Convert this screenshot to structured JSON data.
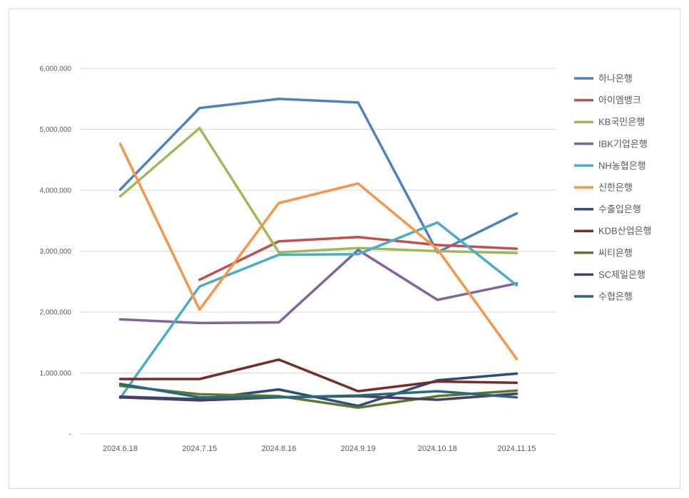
{
  "chart_data": {
    "type": "line",
    "title": "",
    "xlabel": "",
    "ylabel": "",
    "categories": [
      "2024.6.18",
      "2024.7.15",
      "2024.8.16",
      "2024.9.19",
      "2024.10.18",
      "2024.11.15"
    ],
    "ylim": [
      0,
      6000000
    ],
    "y_ticks": [
      0,
      1000000,
      2000000,
      3000000,
      4000000,
      5000000,
      6000000
    ],
    "y_tick_labels": [
      "-",
      "1,000,000",
      "2,000,000",
      "3,000,000",
      "4,000,000",
      "5,000,000",
      "6,000,000"
    ],
    "grid": true,
    "legend_position": "right",
    "series": [
      {
        "name": "하나은행",
        "color": "#4f81bd",
        "values": [
          4010000,
          5350000,
          5500000,
          5440000,
          2980000,
          3620000
        ]
      },
      {
        "name": "아이엠뱅크",
        "color": "#c0504d",
        "values": [
          null,
          2530000,
          3160000,
          3230000,
          3100000,
          3040000
        ]
      },
      {
        "name": "KB국민은행",
        "color": "#9bbb59",
        "values": [
          3900000,
          5020000,
          2980000,
          3050000,
          3000000,
          2970000
        ]
      },
      {
        "name": "IBK기업은행",
        "color": "#8064a2",
        "values": [
          1880000,
          1820000,
          1830000,
          3020000,
          2200000,
          2470000
        ]
      },
      {
        "name": "NH농협은행",
        "color": "#4bacc6",
        "values": [
          590000,
          2420000,
          2940000,
          2950000,
          3470000,
          2440000
        ]
      },
      {
        "name": "신한은행",
        "color": "#f79646",
        "values": [
          4760000,
          2040000,
          3790000,
          4110000,
          3030000,
          1230000
        ]
      },
      {
        "name": "수출입은행",
        "color": "#2c4d75",
        "values": [
          610000,
          570000,
          730000,
          460000,
          880000,
          990000
        ]
      },
      {
        "name": "KDB산업은행",
        "color": "#772c2a",
        "values": [
          900000,
          900000,
          1220000,
          700000,
          860000,
          840000
        ]
      },
      {
        "name": "씨티은행",
        "color": "#5f7530",
        "values": [
          790000,
          650000,
          620000,
          430000,
          620000,
          710000
        ]
      },
      {
        "name": "SC제일은행",
        "color": "#4d3b62",
        "values": [
          600000,
          550000,
          600000,
          620000,
          560000,
          660000
        ]
      },
      {
        "name": "수협은행",
        "color": "#276a7c",
        "values": [
          820000,
          600000,
          600000,
          630000,
          700000,
          600000
        ]
      }
    ]
  }
}
